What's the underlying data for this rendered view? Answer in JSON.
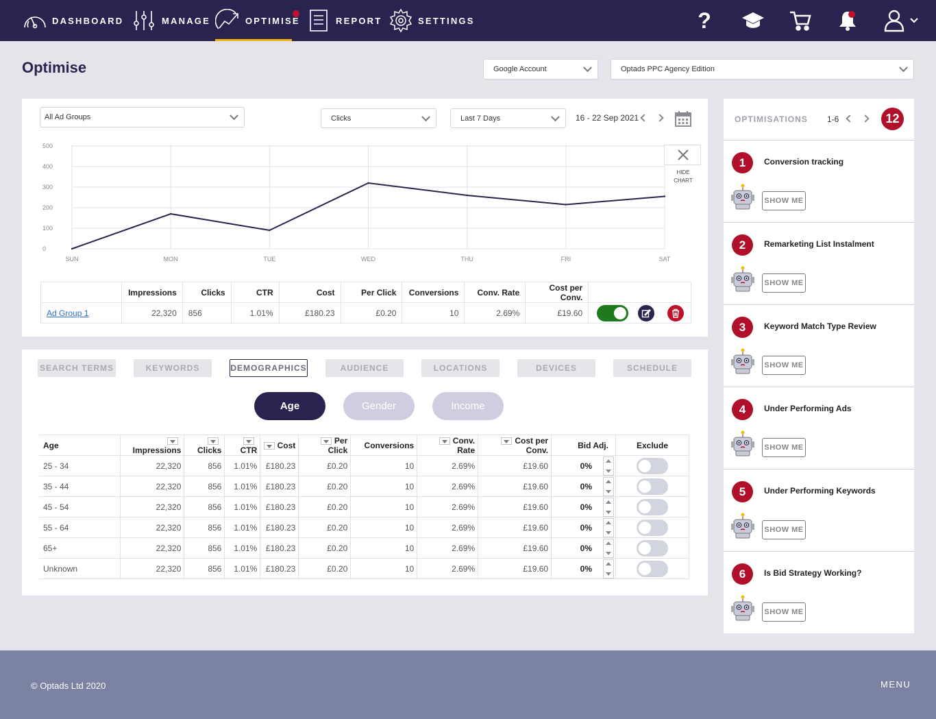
{
  "nav": {
    "items": [
      {
        "label": "DASHBOARD",
        "icon": "gauge-icon"
      },
      {
        "label": "MANAGE",
        "icon": "sliders-icon"
      },
      {
        "label": "OPTIMISE",
        "icon": "trend-icon"
      },
      {
        "label": "REPORT",
        "icon": "document-icon"
      },
      {
        "label": "SETTINGS",
        "icon": "gear-icon"
      }
    ],
    "help_glyph": "?",
    "accent": "#f5b518",
    "notification_color": "#c0112a"
  },
  "header": {
    "title": "Optimise",
    "account_select": "Google Account",
    "edition_select": "Optads PPC Agency Edition"
  },
  "chart_panel": {
    "ad_group_select": "All Ad Groups",
    "metric_select": "Clicks",
    "period_select": "Last 7 Days",
    "date_range": "16 - 22 Sep 2021",
    "hide_chart_label_1": "HIDE",
    "hide_chart_label_2": "CHART"
  },
  "chart_data": {
    "type": "line",
    "categories": [
      "SUN",
      "MON",
      "TUE",
      "WED",
      "THU",
      "FRI",
      "SAT"
    ],
    "series": [
      {
        "values": [
          0,
          170,
          90,
          320,
          260,
          215,
          255
        ]
      }
    ],
    "y_ticks": [
      "0",
      "100",
      "200",
      "300",
      "400",
      "500"
    ],
    "ylim": [
      0,
      500
    ],
    "grid": true,
    "color": "#28234f"
  },
  "summary_table": {
    "headers": [
      "",
      "Impressions",
      "Clicks",
      "CTR",
      "Cost",
      "Per Click",
      "Conversions",
      "Conv. Rate",
      "Cost per Conv.",
      ""
    ],
    "row": {
      "name": "Ad Group 1",
      "impressions": "22,320",
      "clicks": "856",
      "ctr": "1.01%",
      "cost": "£180.23",
      "per_click": "£0.20",
      "conversions": "10",
      "conv_rate": "2.69%",
      "cost_per_conv": "£19.60"
    }
  },
  "tabs": [
    "SEARCH TERMS",
    "KEYWORDS",
    "DEMOGRAPHICS",
    "AUDIENCE",
    "LOCATIONS",
    "DEVICES",
    "SCHEDULE"
  ],
  "subtabs": [
    "Age",
    "Gender",
    "Income"
  ],
  "demographics": {
    "headers": [
      "Age",
      "Impressions",
      "Clicks",
      "CTR",
      "Cost",
      "Per Click",
      "Conversions",
      "Conv. Rate",
      "Cost per Conv.",
      "Bid Adj.",
      "Exclude"
    ],
    "rows": [
      {
        "age": "25 - 34",
        "impressions": "22,320",
        "clicks": "856",
        "ctr": "1.01%",
        "cost": "£180.23",
        "per_click": "£0.20",
        "conversions": "10",
        "conv_rate": "2.69%",
        "cost_per_conv": "£19.60",
        "bid": "0%"
      },
      {
        "age": "35 - 44",
        "impressions": "22,320",
        "clicks": "856",
        "ctr": "1.01%",
        "cost": "£180.23",
        "per_click": "£0.20",
        "conversions": "10",
        "conv_rate": "2.69%",
        "cost_per_conv": "£19.60",
        "bid": "0%"
      },
      {
        "age": "45 -  54",
        "impressions": "22,320",
        "clicks": "856",
        "ctr": "1.01%",
        "cost": "£180.23",
        "per_click": "£0.20",
        "conversions": "10",
        "conv_rate": "2.69%",
        "cost_per_conv": "£19.60",
        "bid": "0%"
      },
      {
        "age": "55 - 64",
        "impressions": "22,320",
        "clicks": "856",
        "ctr": "1.01%",
        "cost": "£180.23",
        "per_click": "£0.20",
        "conversions": "10",
        "conv_rate": "2.69%",
        "cost_per_conv": "£19.60",
        "bid": "0%"
      },
      {
        "age": "65+",
        "impressions": "22,320",
        "clicks": "856",
        "ctr": "1.01%",
        "cost": "£180.23",
        "per_click": "£0.20",
        "conversions": "10",
        "conv_rate": "2.69%",
        "cost_per_conv": "£19.60",
        "bid": "0%"
      },
      {
        "age": "Unknown",
        "impressions": "22,320",
        "clicks": "856",
        "ctr": "1.01%",
        "cost": "£180.23",
        "per_click": "£0.20",
        "conversions": "10",
        "conv_rate": "2.69%",
        "cost_per_conv": "£19.60",
        "bid": "0%"
      }
    ]
  },
  "optimisations": {
    "label": "OPTIMISATIONS",
    "range": "1-6",
    "count": "12",
    "show_me_label": "SHOW ME",
    "items": [
      {
        "num": "1",
        "title": "Conversion tracking"
      },
      {
        "num": "2",
        "title": "Remarketing List Instalment"
      },
      {
        "num": "3",
        "title": "Keyword Match Type Review"
      },
      {
        "num": "4",
        "title": "Under Performing Ads"
      },
      {
        "num": "5",
        "title": "Under Performing Keywords"
      },
      {
        "num": "6",
        "title": "Is Bid Strategy Working?"
      }
    ]
  },
  "footer": {
    "copyright": "© Optads Ltd 2020",
    "menu": "MENU"
  }
}
